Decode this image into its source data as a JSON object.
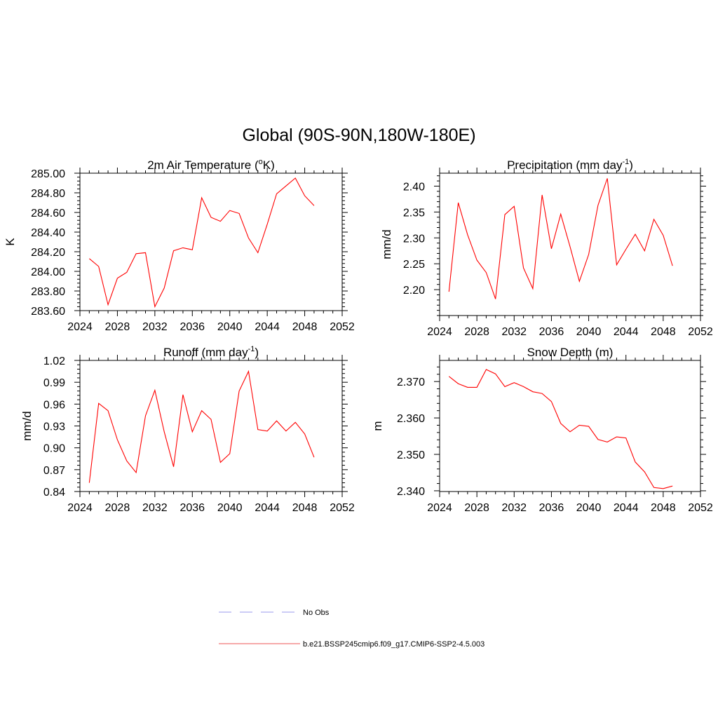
{
  "figure": {
    "title": "Global (90S-90N,180W-180E)"
  },
  "legend": {
    "entries": [
      {
        "label": "No Obs",
        "color": "#9999ee",
        "style": "dashed"
      },
      {
        "label": "b.e21.BSSP245cmip6.f09_g17.CMIP6-SSP2-4.5.003",
        "color": "#ee5555",
        "style": "solid"
      }
    ]
  },
  "chart_data": [
    {
      "type": "line",
      "title": "2m Air Temperature (",
      "title_sup": "o",
      "title_suffix": "K)",
      "ylabel": "K",
      "xlim": [
        2024,
        2052
      ],
      "ylim": [
        283.6,
        285.0
      ],
      "xticks": [
        2024,
        2028,
        2032,
        2036,
        2040,
        2044,
        2048,
        2052
      ],
      "yticks": [
        283.6,
        283.8,
        284.0,
        284.2,
        284.4,
        284.6,
        284.8,
        285.0
      ],
      "ytick_labels": [
        "283.60",
        "283.80",
        "284.00",
        "284.20",
        "284.40",
        "284.60",
        "284.80",
        "285.00"
      ],
      "x": [
        2025,
        2026,
        2027,
        2028,
        2029,
        2030,
        2031,
        2032,
        2033,
        2034,
        2035,
        2036,
        2037,
        2038,
        2039,
        2040,
        2041,
        2042,
        2043,
        2044,
        2045,
        2046,
        2047,
        2048,
        2049
      ],
      "series": [
        {
          "color": "#ff0000",
          "values": [
            284.13,
            284.05,
            283.66,
            283.93,
            283.99,
            284.18,
            284.19,
            283.64,
            283.83,
            284.21,
            284.24,
            284.22,
            284.75,
            284.55,
            284.51,
            284.62,
            284.59,
            284.34,
            284.19,
            284.48,
            284.79,
            284.87,
            284.95,
            284.77,
            284.67
          ]
        }
      ]
    },
    {
      "type": "line",
      "title": "Precipitation (mm day",
      "title_sup": "-1",
      "title_suffix": ")",
      "ylabel": "mm/d",
      "xlim": [
        2024,
        2052
      ],
      "ylim": [
        2.15,
        2.425
      ],
      "xticks": [
        2024,
        2028,
        2032,
        2036,
        2040,
        2044,
        2048,
        2052
      ],
      "yticks": [
        2.2,
        2.25,
        2.3,
        2.35,
        2.4
      ],
      "ytick_labels": [
        "2.20",
        "2.25",
        "2.30",
        "2.35",
        "2.40"
      ],
      "x": [
        2025,
        2026,
        2027,
        2028,
        2029,
        2030,
        2031,
        2032,
        2033,
        2034,
        2035,
        2036,
        2037,
        2038,
        2039,
        2040,
        2041,
        2042,
        2043,
        2044,
        2045,
        2046,
        2047,
        2048,
        2049
      ],
      "series": [
        {
          "color": "#ff0000",
          "values": [
            2.196,
            2.368,
            2.306,
            2.257,
            2.233,
            2.182,
            2.345,
            2.361,
            2.242,
            2.202,
            2.383,
            2.279,
            2.346,
            2.283,
            2.216,
            2.268,
            2.363,
            2.415,
            2.248,
            2.278,
            2.307,
            2.275,
            2.336,
            2.305,
            2.246
          ]
        }
      ]
    },
    {
      "type": "line",
      "title": "Runoff (mm day",
      "title_sup": "-1",
      "title_suffix": ")",
      "ylabel": "mm/d",
      "xlim": [
        2024,
        2052
      ],
      "ylim": [
        0.84,
        1.02
      ],
      "xticks": [
        2024,
        2028,
        2032,
        2036,
        2040,
        2044,
        2048,
        2052
      ],
      "yticks": [
        0.84,
        0.87,
        0.9,
        0.93,
        0.96,
        0.99,
        1.02
      ],
      "ytick_labels": [
        "0.84",
        "0.87",
        "0.90",
        "0.93",
        "0.96",
        "0.99",
        "1.02"
      ],
      "x": [
        2025,
        2026,
        2027,
        2028,
        2029,
        2030,
        2031,
        2032,
        2033,
        2034,
        2035,
        2036,
        2037,
        2038,
        2039,
        2040,
        2041,
        2042,
        2043,
        2044,
        2045,
        2046,
        2047,
        2048,
        2049
      ],
      "series": [
        {
          "color": "#ff0000",
          "values": [
            0.852,
            0.961,
            0.951,
            0.911,
            0.882,
            0.866,
            0.944,
            0.979,
            0.922,
            0.874,
            0.973,
            0.922,
            0.951,
            0.939,
            0.88,
            0.892,
            0.978,
            1.005,
            0.925,
            0.923,
            0.937,
            0.923,
            0.935,
            0.919,
            0.887
          ]
        }
      ]
    },
    {
      "type": "line",
      "title": "Snow Depth (m)",
      "title_sup": "",
      "title_suffix": "",
      "ylabel": "m",
      "xlim": [
        2024,
        2052
      ],
      "ylim": [
        2.3398,
        2.3758
      ],
      "xticks": [
        2024,
        2028,
        2032,
        2036,
        2040,
        2044,
        2048,
        2052
      ],
      "yticks": [
        2.34,
        2.35,
        2.36,
        2.37
      ],
      "ytick_labels": [
        "2.340",
        "2.350",
        "2.360",
        "2.370"
      ],
      "x": [
        2025,
        2026,
        2027,
        2028,
        2029,
        2030,
        2031,
        2032,
        2033,
        2034,
        2035,
        2036,
        2037,
        2038,
        2039,
        2040,
        2041,
        2042,
        2043,
        2044,
        2045,
        2046,
        2047,
        2048,
        2049
      ],
      "series": [
        {
          "color": "#ff0000",
          "values": [
            2.3714,
            2.3694,
            2.3684,
            2.3684,
            2.3733,
            2.3721,
            2.3686,
            2.3697,
            2.3686,
            2.3672,
            2.3667,
            2.3645,
            2.3585,
            2.3562,
            2.358,
            2.3577,
            2.3541,
            2.3534,
            2.3548,
            2.3545,
            2.3479,
            2.3452,
            2.3409,
            2.3406,
            2.3413
          ]
        }
      ]
    }
  ]
}
